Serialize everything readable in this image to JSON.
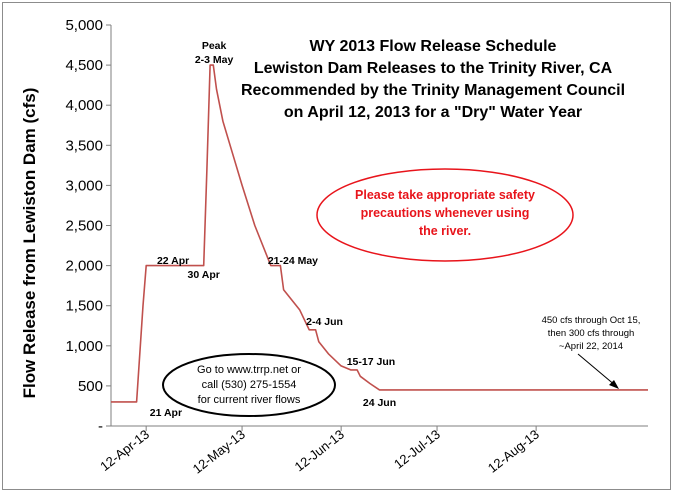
{
  "chart_data": {
    "type": "line",
    "title_lines": [
      "WY 2013 Flow Release Schedule",
      "Lewiston Dam Releases to the Trinity River, CA",
      "Recommended by the Trinity Management Council",
      "on April 12, 2013 for a \"Dry\" Water Year"
    ],
    "xlabel": "",
    "ylabel": "Flow Release from Lewiston Dam (cfs)",
    "xlim": [
      "2013-04-01",
      "2013-09-16"
    ],
    "ylim": [
      0,
      5000
    ],
    "y_ticks": [
      0,
      500,
      1000,
      1500,
      2000,
      2500,
      3000,
      3500,
      4000,
      4500,
      5000
    ],
    "y_tick_labels": [
      "-",
      "500",
      "1,000",
      "1,500",
      "2,000",
      "2,500",
      "3,000",
      "3,500",
      "4,000",
      "4,500",
      "5,000"
    ],
    "x_ticks": [
      "2013-04-12",
      "2013-05-12",
      "2013-06-12",
      "2013-07-12",
      "2013-08-12"
    ],
    "x_tick_labels": [
      "12-Apr-13",
      "12-May-13",
      "12-Jun-13",
      "12-Jul-13",
      "12-Aug-13"
    ],
    "grid": false,
    "series": [
      {
        "color": "#c0504d",
        "points": [
          {
            "x": "2013-04-01",
            "y": 300
          },
          {
            "x": "2013-04-09",
            "y": 300
          },
          {
            "x": "2013-04-11",
            "y": 1500
          },
          {
            "x": "2013-04-12",
            "y": 2000
          },
          {
            "x": "2013-04-21",
            "y": 2000
          },
          {
            "x": "2013-04-21",
            "y": 2000
          },
          {
            "x": "2013-04-30",
            "y": 2000
          },
          {
            "x": "2013-05-01",
            "y": 3200
          },
          {
            "x": "2013-05-02",
            "y": 4500
          },
          {
            "x": "2013-05-03",
            "y": 4500
          },
          {
            "x": "2013-05-04",
            "y": 4200
          },
          {
            "x": "2013-05-06",
            "y": 3800
          },
          {
            "x": "2013-05-09",
            "y": 3400
          },
          {
            "x": "2013-05-12",
            "y": 3000
          },
          {
            "x": "2013-05-16",
            "y": 2500
          },
          {
            "x": "2013-05-21",
            "y": 2000
          },
          {
            "x": "2013-05-24",
            "y": 2000
          },
          {
            "x": "2013-05-25",
            "y": 1700
          },
          {
            "x": "2013-05-30",
            "y": 1450
          },
          {
            "x": "2013-06-02",
            "y": 1200
          },
          {
            "x": "2013-06-04",
            "y": 1200
          },
          {
            "x": "2013-06-05",
            "y": 1050
          },
          {
            "x": "2013-06-08",
            "y": 900
          },
          {
            "x": "2013-06-12",
            "y": 750
          },
          {
            "x": "2013-06-15",
            "y": 700
          },
          {
            "x": "2013-06-17",
            "y": 700
          },
          {
            "x": "2013-06-18",
            "y": 620
          },
          {
            "x": "2013-06-21",
            "y": 530
          },
          {
            "x": "2013-06-24",
            "y": 450
          },
          {
            "x": "2013-09-16",
            "y": 450
          }
        ]
      }
    ],
    "annotations": [
      {
        "text": "21 Apr",
        "x": "2013-04-21"
      },
      {
        "text": "22 Apr",
        "x": "2013-04-22"
      },
      {
        "text": "30 Apr",
        "x": "2013-04-30"
      },
      {
        "text": "Peak",
        "x": "2013-05-02"
      },
      {
        "text": "2-3 May",
        "x": "2013-05-02"
      },
      {
        "text": "21-24 May",
        "x": "2013-05-21"
      },
      {
        "text": "2-4 Jun",
        "x": "2013-06-02"
      },
      {
        "text": "15-17 Jun",
        "x": "2013-06-15"
      },
      {
        "text": "24 Jun",
        "x": "2013-06-24"
      }
    ],
    "flow_note": [
      "450 cfs through Oct 15,",
      "then 300 cfs through",
      "~April 22, 2014"
    ],
    "safety_note": [
      "Please take appropriate safety",
      "precautions whenever using",
      "the river."
    ],
    "website_note": [
      "Go to www.trrp.net or",
      "call (530) 275-1554",
      "for current river flows"
    ],
    "colors": {
      "line": "#c0504d",
      "safety_text": "#e8141b",
      "safety_border": "#e8141b",
      "axis": "#7f7f7f"
    }
  }
}
